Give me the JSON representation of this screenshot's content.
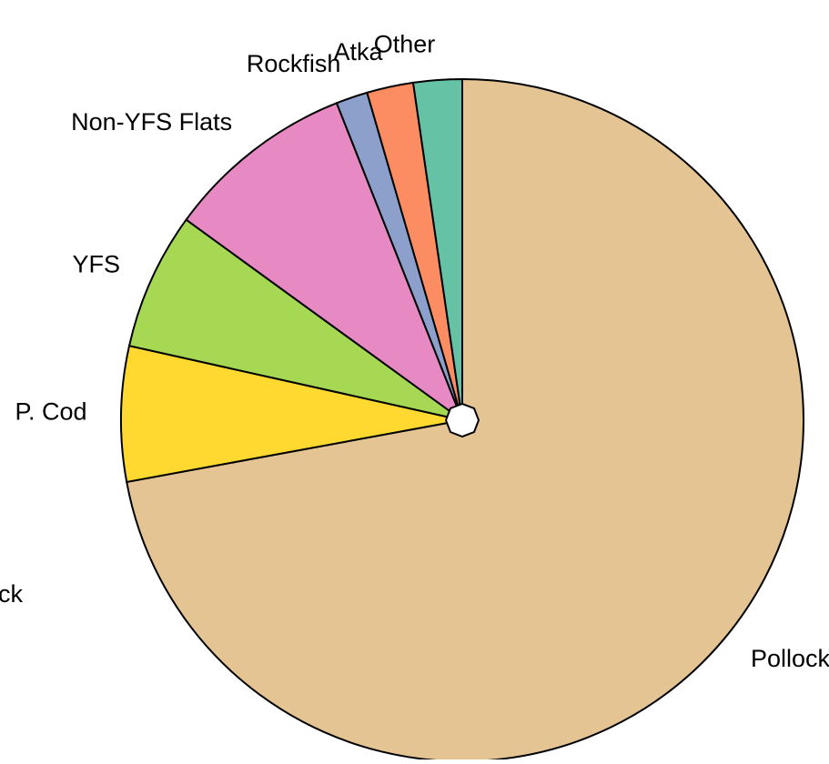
{
  "chart_data": {
    "type": "pie",
    "categories": [
      "Pollock",
      "P. Cod",
      "YFS",
      "Non-YFS Flats",
      "Rockfish",
      "Atka",
      "Other"
    ],
    "values": [
      72.1,
      6.4,
      6.5,
      9.0,
      1.5,
      2.2,
      2.3
    ],
    "colors": [
      "#e5c494",
      "#ffd92f",
      "#a6d854",
      "#e78ac3",
      "#8da0cb",
      "#fc8d62",
      "#66c2a5"
    ],
    "clockwise": true,
    "annotations": [
      "ck"
    ]
  }
}
